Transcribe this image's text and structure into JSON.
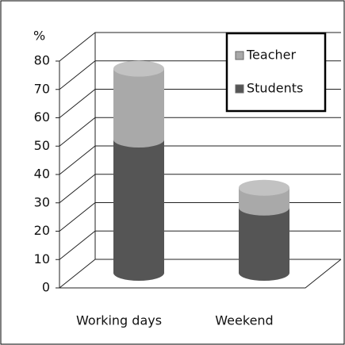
{
  "chart_data": {
    "type": "bar3d_stacked_cylinder",
    "y_label": "%",
    "categories": [
      "Working days",
      "Weekend"
    ],
    "series": [
      {
        "name": "Students",
        "color": "#555555",
        "values": [
          47,
          23
        ]
      },
      {
        "name": "Teacher",
        "color": "#a9a9a9",
        "values": [
          25,
          7
        ]
      }
    ],
    "ylim": [
      0,
      80
    ],
    "yticks": [
      0,
      10,
      20,
      30,
      40,
      50,
      60,
      70,
      80
    ],
    "grid": true,
    "legend": "upper right"
  }
}
